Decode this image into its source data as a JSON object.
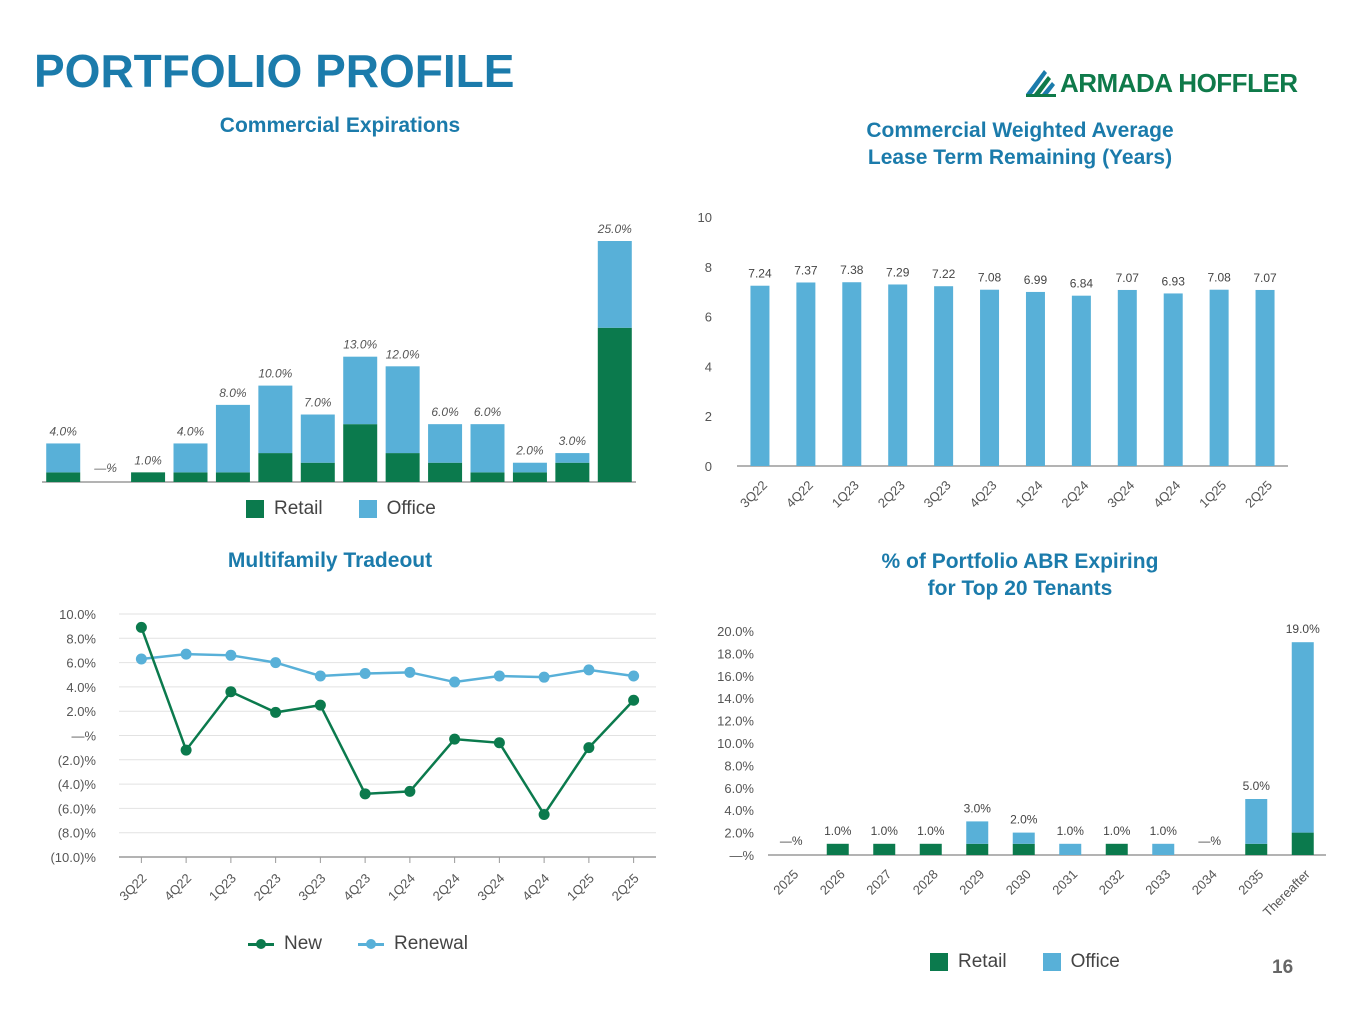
{
  "page": {
    "title": "PORTFOLIO PROFILE",
    "number": "16"
  },
  "brand": {
    "name": "ARMADA HOFFLER",
    "color": "#0f7a4a",
    "icon": "armada-hoffler-logo-icon"
  },
  "colors": {
    "title": "#1b7bab",
    "retail": "#0b7a4d",
    "office": "#58b0d8",
    "new": "#0b7a4d",
    "renewal": "#58b0d8"
  },
  "chart_data": [
    {
      "id": "commercial-expirations",
      "type": "bar",
      "stacked": true,
      "title": "Commercial Expirations",
      "categories": [
        "",
        "",
        "",
        "",
        "",
        "",
        "",
        "",
        "",
        "",
        "",
        "",
        "",
        ""
      ],
      "series": [
        {
          "name": "Retail",
          "values": [
            1,
            0,
            1,
            1,
            1,
            3,
            2,
            6,
            3,
            2,
            1,
            1,
            2,
            16
          ]
        },
        {
          "name": "Office",
          "values": [
            3,
            0,
            0,
            3,
            7,
            7,
            5,
            7,
            9,
            4,
            5,
            1,
            1,
            9
          ]
        }
      ],
      "labels": [
        "4.0%",
        "—%",
        "1.0%",
        "4.0%",
        "8.0%",
        "10.0%",
        "7.0%",
        "13.0%",
        "12.0%",
        "6.0%",
        "6.0%",
        "2.0%",
        "3.0%",
        "25.0%"
      ],
      "ylim": [
        0,
        26
      ],
      "legend": [
        "Retail",
        "Office"
      ]
    },
    {
      "id": "wale",
      "type": "bar",
      "title": "Commercial Weighted Average\nLease Term Remaining (Years)",
      "categories": [
        "3Q22",
        "4Q22",
        "1Q23",
        "2Q23",
        "3Q23",
        "4Q23",
        "1Q24",
        "2Q24",
        "3Q24",
        "4Q24",
        "1Q25",
        "2Q25"
      ],
      "values": [
        7.24,
        7.37,
        7.38,
        7.29,
        7.22,
        7.08,
        6.99,
        6.84,
        7.07,
        6.93,
        7.08,
        7.07
      ],
      "yticks": [
        "0",
        "2",
        "4",
        "6",
        "8",
        "10"
      ],
      "ylim": [
        0,
        10
      ]
    },
    {
      "id": "multifamily-tradeout",
      "type": "line",
      "title": "Multifamily Tradeout",
      "categories": [
        "3Q22",
        "4Q22",
        "1Q23",
        "2Q23",
        "3Q23",
        "4Q23",
        "1Q24",
        "2Q24",
        "3Q24",
        "4Q24",
        "1Q25",
        "2Q25"
      ],
      "series": [
        {
          "name": "New",
          "values": [
            8.9,
            -1.2,
            3.6,
            1.9,
            2.5,
            -4.8,
            -4.6,
            -0.3,
            -0.6,
            -6.5,
            -1.0,
            2.9
          ]
        },
        {
          "name": "Renewal",
          "values": [
            6.3,
            6.7,
            6.6,
            6.0,
            4.9,
            5.1,
            5.2,
            4.4,
            4.9,
            4.8,
            5.4,
            4.9
          ]
        }
      ],
      "yticks": [
        "(10.0)%",
        "(8.0)%",
        "(6.0)%",
        "(4.0)%",
        "(2.0)%",
        "—%",
        "2.0%",
        "4.0%",
        "6.0%",
        "8.0%",
        "10.0%"
      ],
      "ylim": [
        -10,
        10
      ],
      "legend": [
        "New",
        "Renewal"
      ]
    },
    {
      "id": "top20-abr",
      "type": "bar",
      "stacked": true,
      "title": "% of Portfolio ABR Expiring\nfor Top 20 Tenants",
      "categories": [
        "2025",
        "2026",
        "2027",
        "2028",
        "2029",
        "2030",
        "2031",
        "2032",
        "2033",
        "2034",
        "2035",
        "Thereafter"
      ],
      "series": [
        {
          "name": "Retail",
          "values": [
            0,
            1,
            1,
            1,
            1,
            1,
            0,
            1,
            0,
            0,
            1,
            2
          ]
        },
        {
          "name": "Office",
          "values": [
            0,
            0,
            0,
            0,
            2,
            1,
            1,
            0,
            1,
            0,
            4,
            17
          ]
        }
      ],
      "labels": [
        "—%",
        "1.0%",
        "1.0%",
        "1.0%",
        "3.0%",
        "2.0%",
        "1.0%",
        "1.0%",
        "1.0%",
        "—%",
        "5.0%",
        "19.0%"
      ],
      "yticks": [
        "—%",
        "2.0%",
        "4.0%",
        "6.0%",
        "8.0%",
        "10.0%",
        "12.0%",
        "14.0%",
        "16.0%",
        "18.0%",
        "20.0%"
      ],
      "ylim": [
        0,
        20
      ],
      "legend": [
        "Retail",
        "Office"
      ]
    }
  ]
}
